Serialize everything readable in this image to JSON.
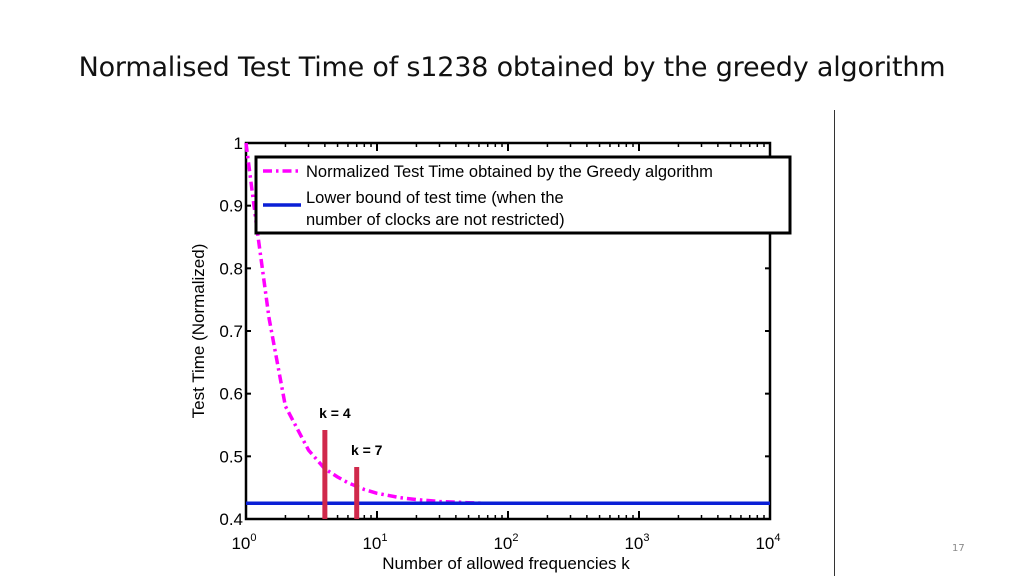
{
  "slide": {
    "title": "Normalised Test Time of s1238 obtained by the greedy algorithm",
    "page_number": "17"
  },
  "chart_data": {
    "type": "line",
    "xscale": "log",
    "xlim": [
      1,
      10000
    ],
    "ylim": [
      0.4,
      1.0
    ],
    "xlabel": "Number of allowed frequencies k",
    "ylabel": "Test Time (Normalized)",
    "x_ticks": [
      {
        "value": 1,
        "base": "10",
        "exp": "0"
      },
      {
        "value": 10,
        "base": "10",
        "exp": "1"
      },
      {
        "value": 100,
        "base": "10",
        "exp": "2"
      },
      {
        "value": 1000,
        "base": "10",
        "exp": "3"
      },
      {
        "value": 10000,
        "base": "10",
        "exp": "4"
      }
    ],
    "y_ticks": [
      {
        "value": 0.4,
        "label": "0.4"
      },
      {
        "value": 0.5,
        "label": "0.5"
      },
      {
        "value": 0.6,
        "label": "0.6"
      },
      {
        "value": 0.7,
        "label": "0.7"
      },
      {
        "value": 0.8,
        "label": "0.8"
      },
      {
        "value": 0.9,
        "label": "0.9"
      },
      {
        "value": 1.0,
        "label": "1"
      }
    ],
    "grid": false,
    "legend_position": "top",
    "series": [
      {
        "name": "Normalized Test Time obtained by the Greedy algorithm",
        "color": "#ff00ff",
        "style": "dash-dot",
        "x": [
          1,
          1.2,
          1.5,
          2,
          3,
          4,
          5,
          6,
          7,
          8,
          10,
          15,
          20,
          30,
          50,
          70,
          100
        ],
        "y": [
          1.0,
          0.87,
          0.72,
          0.58,
          0.51,
          0.48,
          0.467,
          0.458,
          0.452,
          0.447,
          0.441,
          0.434,
          0.431,
          0.428,
          0.426,
          0.425,
          0.425
        ]
      },
      {
        "name": "Lower bound of test time (when the number of clocks are not restricted)",
        "name_lines": [
          "Lower bound of test time (when the",
          "number of clocks are not restricted)"
        ],
        "color": "#0a1fd6",
        "style": "solid",
        "x": [
          1,
          10000
        ],
        "y": [
          0.425,
          0.425
        ]
      }
    ],
    "markers": [
      {
        "label": "k = 4",
        "x": 4,
        "y_from": 0.4,
        "y_to": 0.542,
        "color": "#d0294b"
      },
      {
        "label": "k = 7",
        "x": 7,
        "y_from": 0.4,
        "y_to": 0.483,
        "color": "#d0294b"
      }
    ]
  }
}
